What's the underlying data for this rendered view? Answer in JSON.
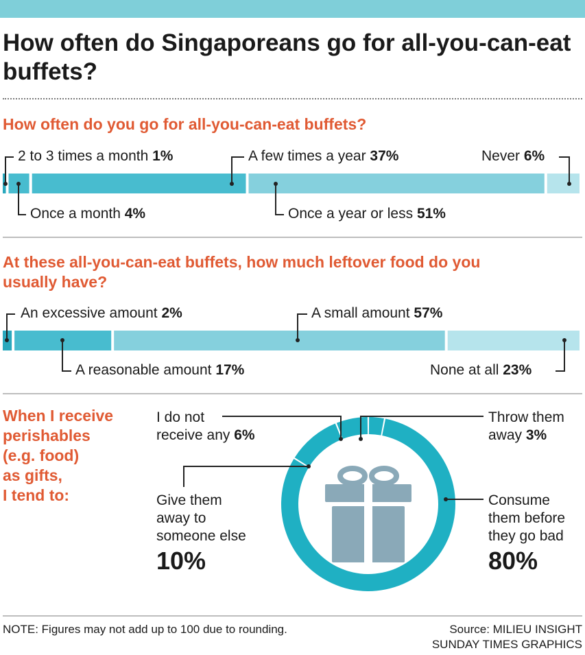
{
  "title": "How often do Singaporeans go for all-you-can-eat buffets?",
  "colors": {
    "accent": "#e05a33",
    "bar_dark": "#2aa8bd",
    "bar_mid": "#48bccf",
    "bar_light": "#85d0dd",
    "bar_lightest": "#b6e4ec",
    "donut": "#1fb0c3",
    "gift": "#8aa9b8"
  },
  "chart_data": [
    {
      "type": "bar",
      "stacked": true,
      "title": "How often do you go for all-you-can-eat buffets?",
      "categories": [
        "2 to 3 times a month",
        "Once a month",
        "A few times a year",
        "Once a year or less",
        "Never"
      ],
      "values": [
        1,
        4,
        37,
        51,
        6
      ],
      "value_labels": [
        "1%",
        "4%",
        "37%",
        "51%",
        "6%"
      ]
    },
    {
      "type": "bar",
      "stacked": true,
      "title": "At these all-you-can-eat buffets, how much leftover food do you usually have?",
      "categories": [
        "An excessive amount",
        "A reasonable amount",
        "A small amount",
        "None at all"
      ],
      "values": [
        2,
        17,
        57,
        23
      ],
      "value_labels": [
        "2%",
        "17%",
        "57%",
        "23%"
      ]
    },
    {
      "type": "pie",
      "donut": true,
      "title": "When I receive perishables (e.g. food) as gifts, I tend to:",
      "categories": [
        "Throw them away",
        "I do not receive any",
        "Give them away to someone else",
        "Consume them before they go bad"
      ],
      "values": [
        3,
        6,
        10,
        80
      ],
      "value_labels": [
        "3%",
        "6%",
        "10%",
        "80%"
      ]
    }
  ],
  "labels": {
    "c3_throw_1": "Throw them",
    "c3_throw_2": "away",
    "c3_notrec_1": "I do not",
    "c3_notrec_2": "receive any",
    "c3_give_1": "Give them",
    "c3_give_2": "away to",
    "c3_give_3": "someone else",
    "c3_consume_1": "Consume",
    "c3_consume_2": "them before",
    "c3_consume_3": "they go bad"
  },
  "q3_title": "When I receive\nperishables\n(e.g. food)\nas gifts,\nI tend to:",
  "note": "NOTE: Figures may not add up to 100 due to rounding.",
  "source_1": "Source: MILIEU INSIGHT",
  "source_2": "SUNDAY TIMES GRAPHICS"
}
